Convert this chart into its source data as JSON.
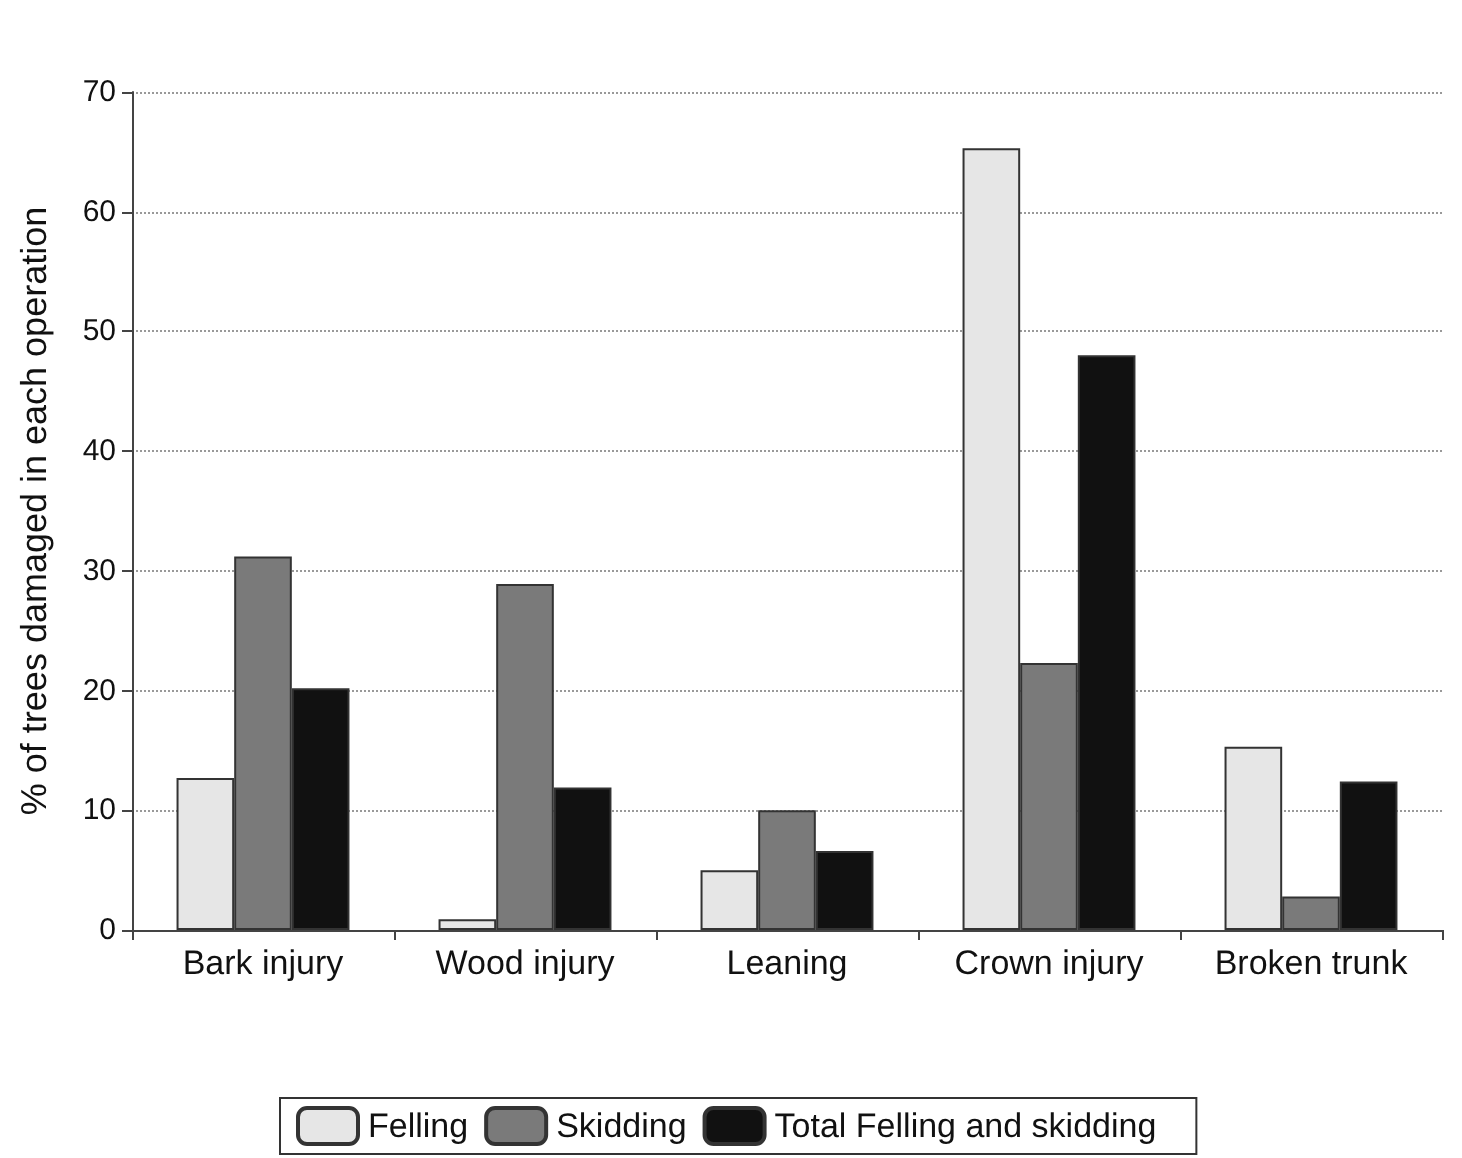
{
  "chart_data": {
    "type": "bar",
    "ylabel": "% of trees damaged in each operation",
    "categories": [
      "Bark injury",
      "Wood injury",
      "Leaning",
      "Crown injury",
      "Broken trunk"
    ],
    "series": [
      {
        "name": "Felling",
        "color": "#e6e6e6",
        "values": [
          12.7,
          0.9,
          5,
          65.3,
          15.3
        ]
      },
      {
        "name": "Skidding",
        "color": "#7a7a7a",
        "values": [
          31.2,
          28.9,
          10,
          22.3,
          2.8
        ]
      },
      {
        "name": "Total Felling and skidding",
        "color": "#111111",
        "values": [
          20.2,
          11.9,
          6.6,
          48,
          12.4
        ]
      }
    ],
    "ylim": [
      0,
      70
    ],
    "yticks": [
      0,
      10,
      20,
      30,
      40,
      50,
      60,
      70
    ],
    "grid": "y",
    "legend": "bottom"
  }
}
